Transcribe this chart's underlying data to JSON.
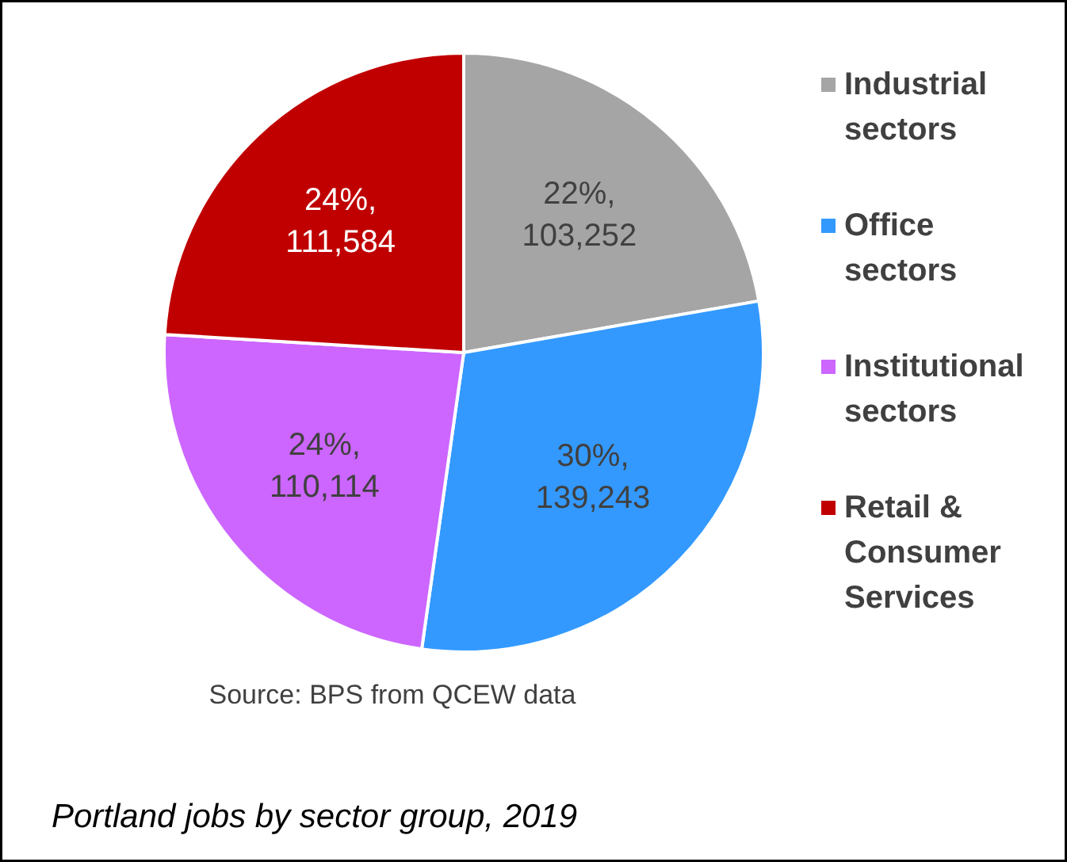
{
  "chart_data": {
    "type": "pie",
    "categories": [
      "Industrial sectors",
      "Office sectors",
      "Institutional sectors",
      "Retail & Consumer Services"
    ],
    "values": [
      103252,
      139243,
      110114,
      111584
    ],
    "colors": [
      "#a5a5a5",
      "#3399ff",
      "#cc66ff",
      "#c00000"
    ],
    "value_labels": [
      "22%, 103,252",
      "30%, 139,243",
      "24%, 110,114",
      "24%, 111,584"
    ],
    "legend": "right",
    "annotations": [
      "Source: BPS from QCEW data",
      "Portland jobs by sector group, 2019"
    ]
  }
}
